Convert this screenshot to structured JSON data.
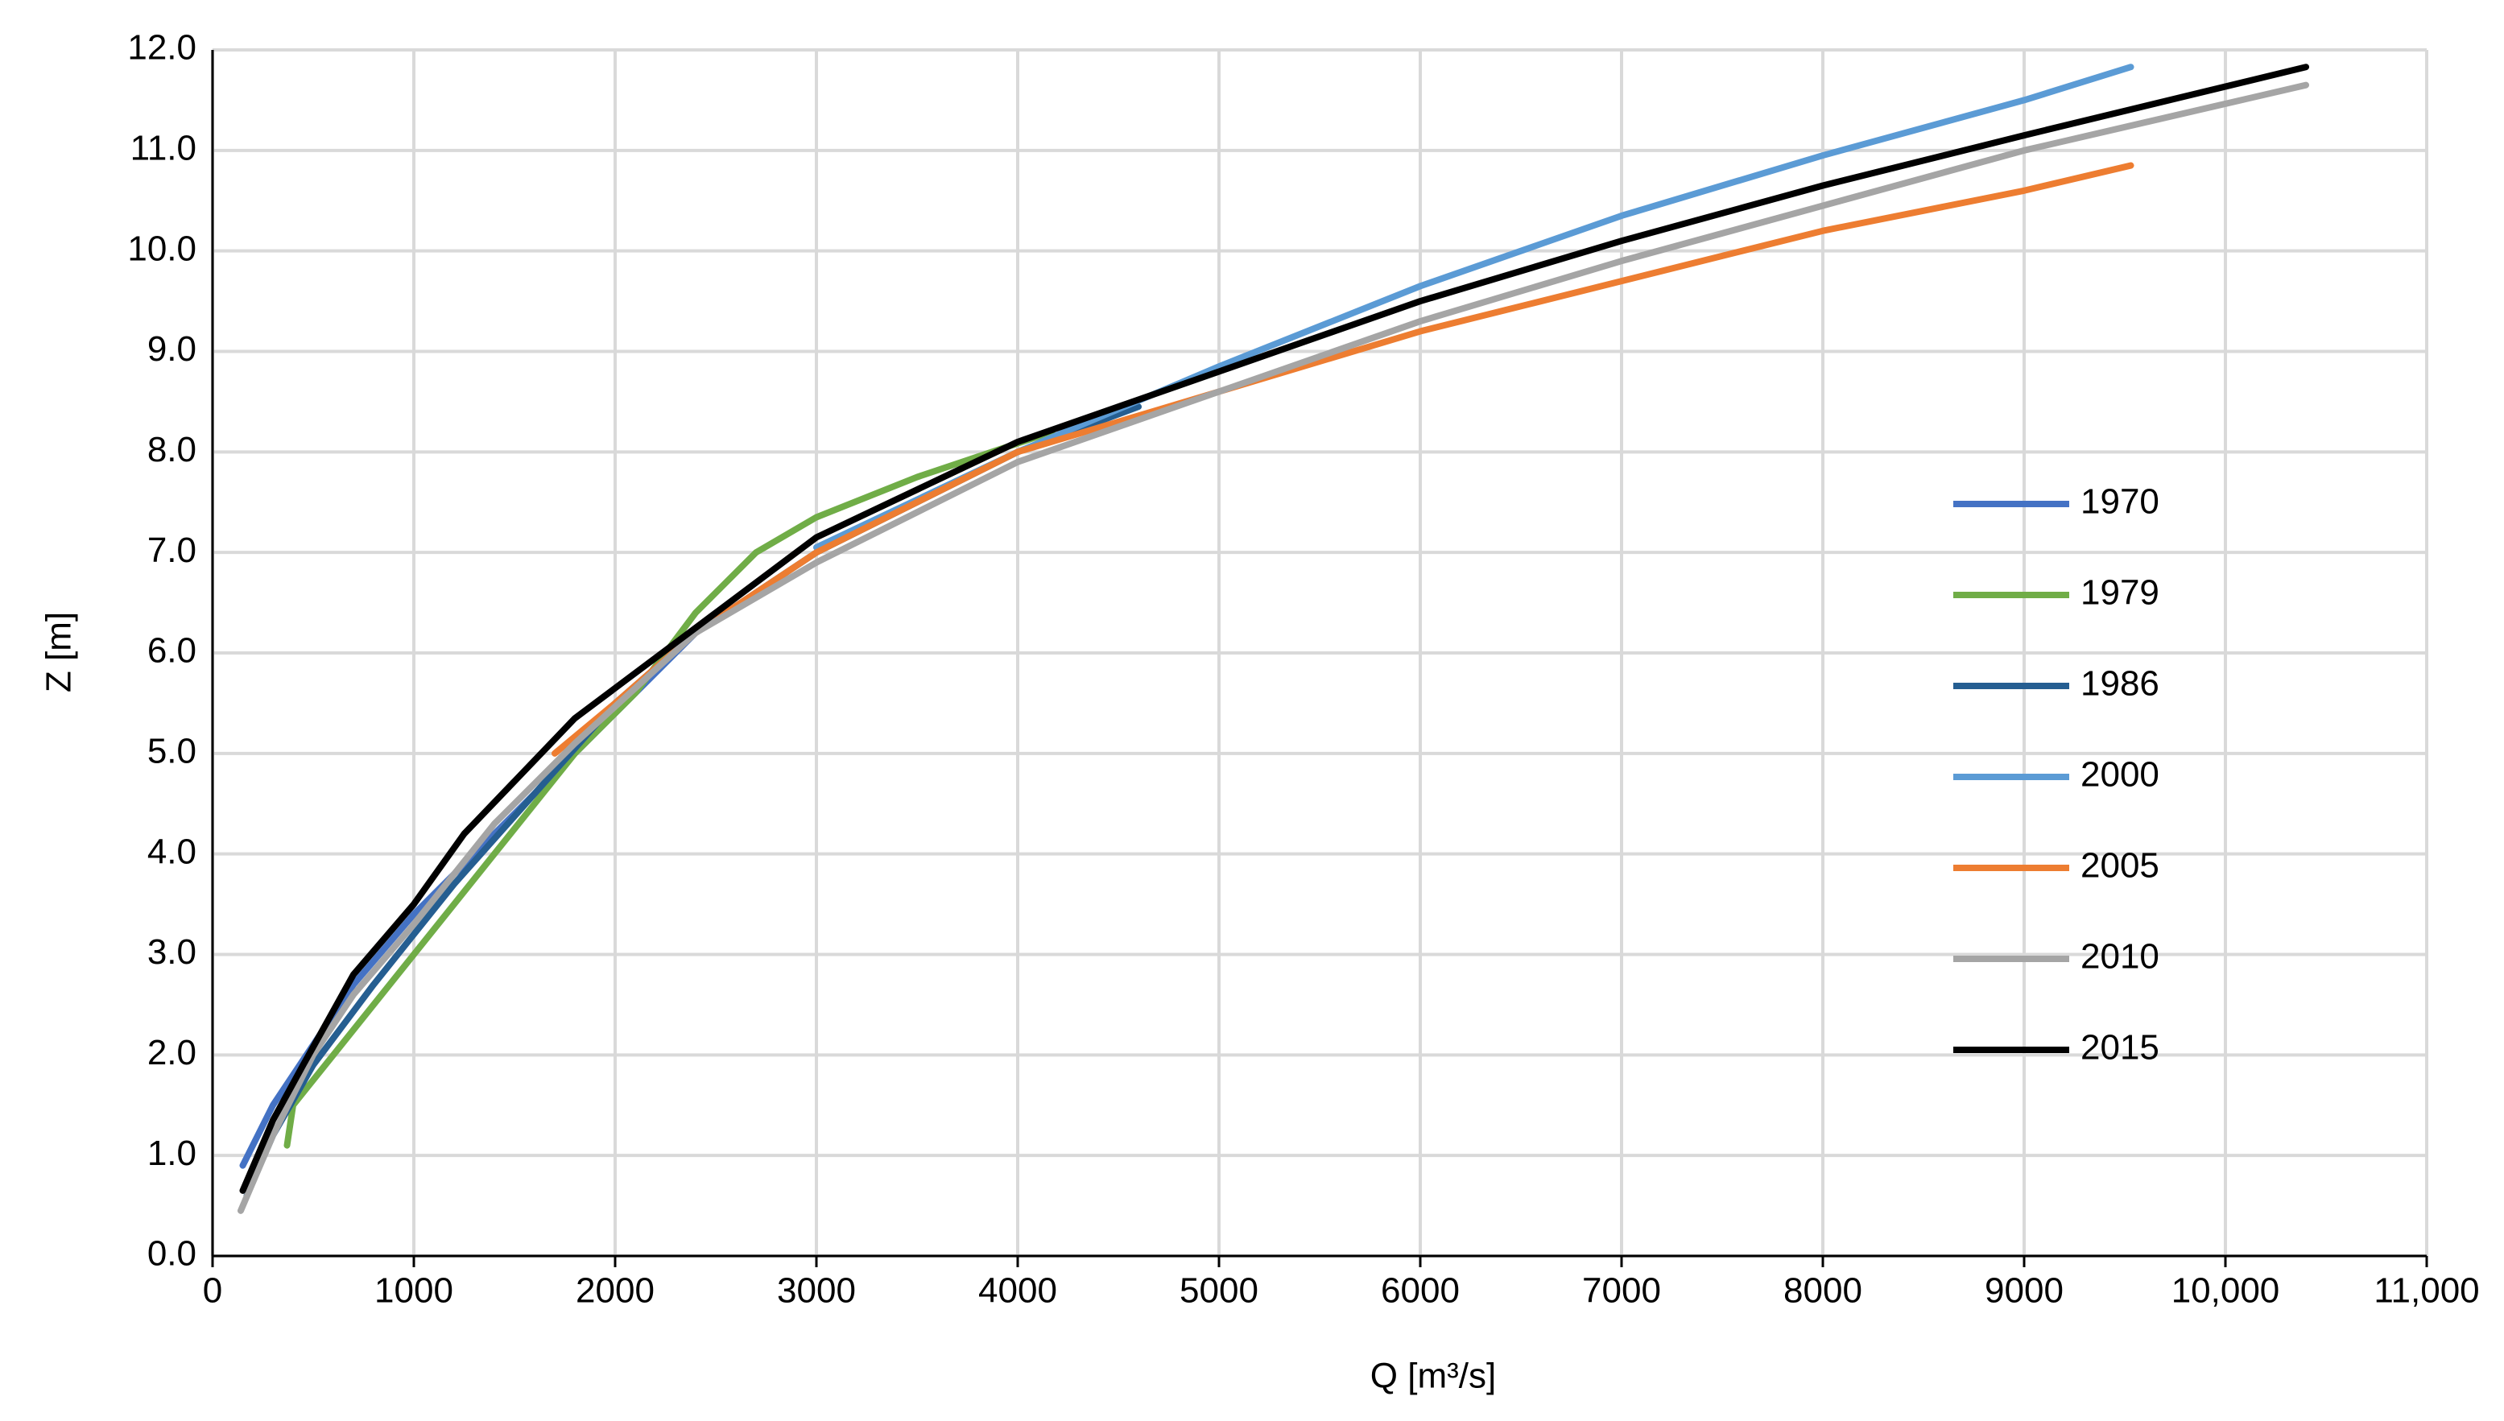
{
  "chart_data": {
    "type": "line",
    "x_label": "Q [m³/s]",
    "y_label": "Z [m]",
    "xlim": [
      0,
      11000
    ],
    "xticks": [
      0,
      1000,
      2000,
      3000,
      4000,
      5000,
      6000,
      7000,
      8000,
      9000,
      {
        "value": 10000,
        "label": "10,000"
      },
      {
        "value": 11000,
        "label": "11,000"
      }
    ],
    "ylim": [
      0,
      12
    ],
    "yticks": [
      {
        "value": 0,
        "label": "0.0"
      },
      {
        "value": 1,
        "label": "1.0"
      },
      {
        "value": 2,
        "label": "2.0"
      },
      {
        "value": 3,
        "label": "3.0"
      },
      {
        "value": 4,
        "label": "4.0"
      },
      {
        "value": 5,
        "label": "5.0"
      },
      {
        "value": 6,
        "label": "6.0"
      },
      {
        "value": 7,
        "label": "7.0"
      },
      {
        "value": 8,
        "label": "8.0"
      },
      {
        "value": 9,
        "label": "9.0"
      },
      {
        "value": 10,
        "label": "10.0"
      },
      {
        "value": 11,
        "label": "11.0"
      },
      {
        "value": 12,
        "label": "12.0"
      }
    ],
    "grid": true,
    "legend": "right",
    "series": [
      {
        "name": "1970",
        "color": "#4472c4",
        "x": [
          150,
          300,
          500,
          700,
          1000,
          1300,
          1600,
          2000,
          2400
        ],
        "values": [
          0.9,
          1.5,
          2.1,
          2.7,
          3.4,
          4.0,
          4.6,
          5.4,
          6.2
        ]
      },
      {
        "name": "1979",
        "color": "#70ad47",
        "x": [
          370,
          400,
          600,
          1000,
          1400,
          1800,
          2100,
          2400,
          2700,
          3000,
          3500,
          4170
        ],
        "values": [
          1.1,
          1.5,
          2.0,
          3.0,
          4.0,
          5.0,
          5.6,
          6.4,
          7.0,
          7.35,
          7.75,
          8.2
        ]
      },
      {
        "name": "1986",
        "color": "#255e91",
        "x": [
          170,
          300,
          500,
          800,
          1200,
          1600,
          2000,
          2400,
          3000,
          3500,
          4000,
          4600
        ],
        "values": [
          0.6,
          1.2,
          1.9,
          2.7,
          3.7,
          4.6,
          5.5,
          6.2,
          7.0,
          7.5,
          8.0,
          8.45
        ]
      },
      {
        "name": "2000",
        "color": "#5b9bd5",
        "x": [
          3000,
          4000,
          5000,
          6000,
          7000,
          8000,
          9000,
          9530
        ],
        "values": [
          7.05,
          8.0,
          8.85,
          9.65,
          10.35,
          10.95,
          11.5,
          11.83
        ]
      },
      {
        "name": "2005",
        "color": "#ed7d31",
        "x": [
          1700,
          2000,
          2400,
          3000,
          4000,
          5000,
          6000,
          7000,
          8000,
          9000,
          9530
        ],
        "values": [
          5.0,
          5.5,
          6.2,
          7.0,
          8.0,
          8.6,
          9.2,
          9.7,
          10.2,
          10.6,
          10.85
        ]
      },
      {
        "name": "2010",
        "color": "#a5a5a5",
        "x": [
          140,
          300,
          500,
          700,
          1000,
          1400,
          1800,
          2400,
          3000,
          4000,
          5000,
          6000,
          7000,
          8000,
          9000,
          10400
        ],
        "values": [
          0.45,
          1.2,
          2.0,
          2.6,
          3.3,
          4.3,
          5.1,
          6.2,
          6.9,
          7.9,
          8.6,
          9.3,
          9.9,
          10.45,
          11.0,
          11.65
        ]
      },
      {
        "name": "2015",
        "color": "#000000",
        "x": [
          150,
          300,
          450,
          700,
          1000,
          1250,
          1800,
          2400,
          3000,
          4000,
          5000,
          6000,
          7000,
          8000,
          9000,
          10400
        ],
        "values": [
          0.65,
          1.35,
          1.9,
          2.8,
          3.5,
          4.2,
          5.35,
          6.25,
          7.15,
          8.1,
          8.8,
          9.5,
          10.1,
          10.65,
          11.15,
          11.83
        ]
      }
    ]
  }
}
